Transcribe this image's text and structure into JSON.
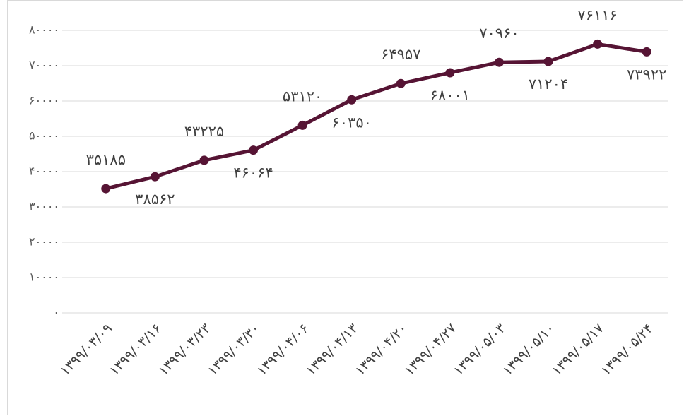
{
  "chart_data": {
    "type": "line",
    "categories": [
      "۱۳۹۹/۰۳/۰۹",
      "۱۳۹۹/۰۳/۱۶",
      "۱۳۹۹/۰۳/۲۳",
      "۱۳۹۹/۰۳/۳۰",
      "۱۳۹۹/۰۴/۰۶",
      "۱۳۹۹/۰۴/۱۳",
      "۱۳۹۹/۰۴/۲۰",
      "۱۳۹۹/۰۴/۲۷",
      "۱۳۹۹/۰۵/۰۳",
      "۱۳۹۹/۰۵/۱۰",
      "۱۳۹۹/۰۵/۱۷",
      "۱۳۹۹/۰۵/۲۴"
    ],
    "values": [
      35185,
      38562,
      43225,
      46064,
      53120,
      60350,
      64957,
      68001,
      70960,
      71204,
      76116,
      73922
    ],
    "value_labels": [
      "۳۵۱۸۵",
      "۳۸۵۶۲",
      "۴۳۲۲۵",
      "۴۶۰۶۴",
      "۵۳۱۲۰",
      "۶۰۳۵۰",
      "۶۴۹۵۷",
      "۶۸۰۰۱",
      "۷۰۹۶۰",
      "۷۱۲۰۴",
      "۷۶۱۱۶",
      "۷۳۹۲۲"
    ],
    "color": "#561434",
    "ylim": [
      0,
      80000
    ],
    "yticks": [
      {
        "value": 0,
        "label": "۰"
      },
      {
        "value": 10000,
        "label": "۱۰۰۰۰"
      },
      {
        "value": 20000,
        "label": "۲۰۰۰۰"
      },
      {
        "value": 30000,
        "label": "۳۰۰۰۰"
      },
      {
        "value": 40000,
        "label": "۴۰۰۰۰"
      },
      {
        "value": 50000,
        "label": "۵۰۰۰۰"
      },
      {
        "value": 60000,
        "label": "۶۰۰۰۰"
      },
      {
        "value": 70000,
        "label": "۷۰۰۰۰"
      },
      {
        "value": 80000,
        "label": "۸۰۰۰۰"
      }
    ],
    "grid": true
  }
}
